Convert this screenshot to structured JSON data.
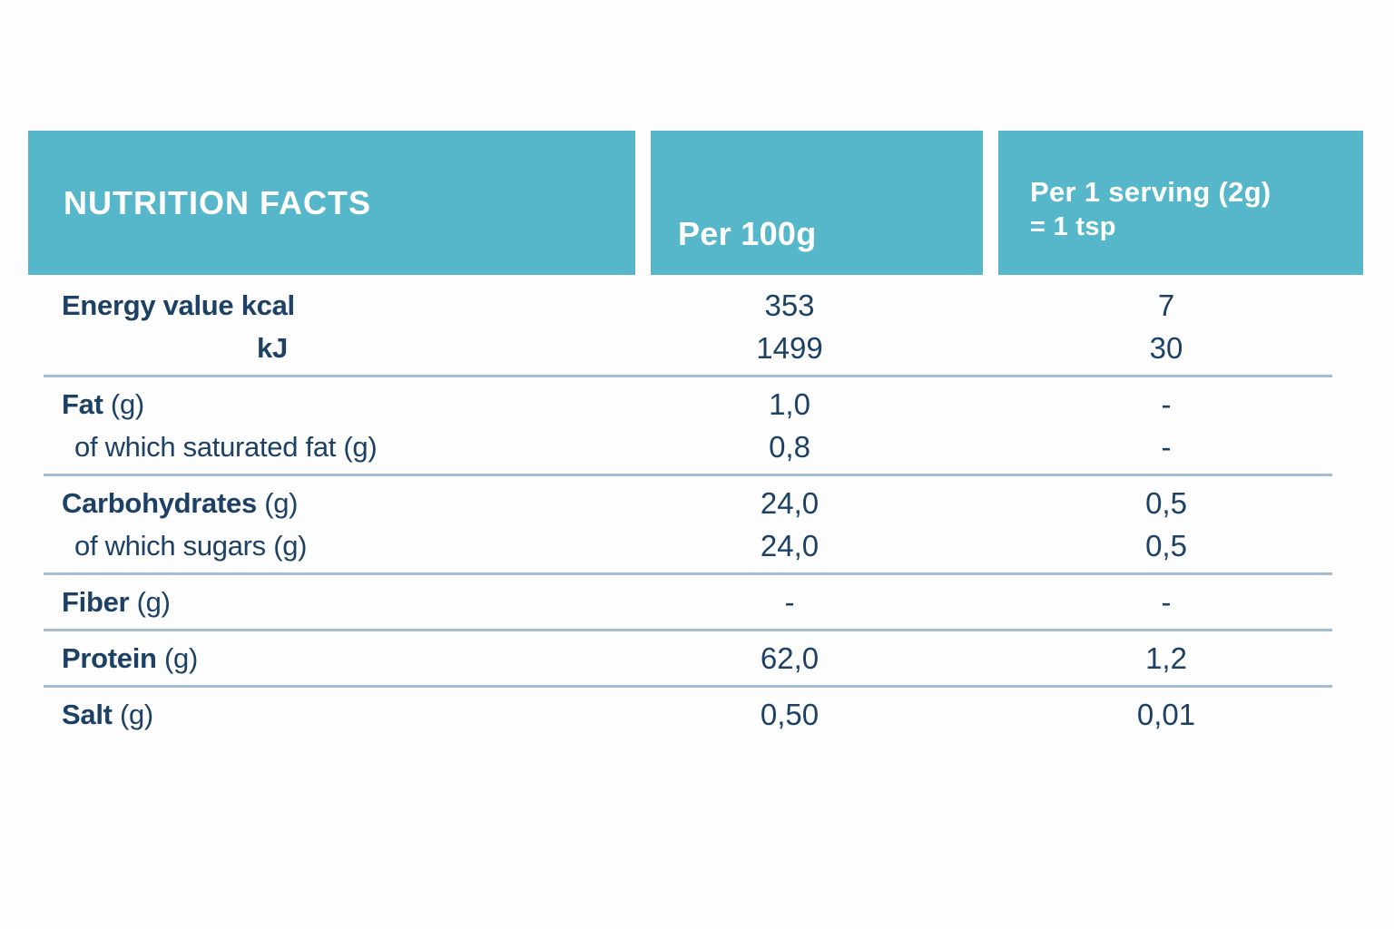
{
  "colors": {
    "teal": "#56b7ca",
    "navy": "#1d4164",
    "divider": "#a3bdd2",
    "background": "#fdfdfd"
  },
  "header": {
    "title": "NUTRITION FACTS",
    "per_100g": "Per 100g",
    "per_serving_line1": "Per 1 serving (2g)",
    "per_serving_line2": "= 1 tsp"
  },
  "rows": [
    {
      "lines": [
        {
          "bold": "Energy value kcal",
          "rest": "",
          "per_100g": "353",
          "per_serving": "7"
        },
        {
          "bold": "kJ",
          "rest": "",
          "per_100g": "1499",
          "per_serving": "30"
        }
      ]
    },
    {
      "lines": [
        {
          "bold": "Fat",
          "rest": " (g)",
          "per_100g": "1,0",
          "per_serving": "-"
        },
        {
          "bold": "",
          "rest": "of which saturated fat (g)",
          "per_100g": "0,8",
          "per_serving": "-"
        }
      ]
    },
    {
      "lines": [
        {
          "bold": "Carbohydrates",
          "rest": " (g)",
          "per_100g": "24,0",
          "per_serving": "0,5"
        },
        {
          "bold": "",
          "rest": "of which sugars (g)",
          "per_100g": "24,0",
          "per_serving": "0,5"
        }
      ]
    },
    {
      "lines": [
        {
          "bold": "Fiber",
          "rest": " (g)",
          "per_100g": "-",
          "per_serving": "-"
        }
      ]
    },
    {
      "lines": [
        {
          "bold": "Protein",
          "rest": " (g)",
          "per_100g": "62,0",
          "per_serving": "1,2"
        }
      ]
    },
    {
      "lines": [
        {
          "bold": "Salt",
          "rest": " (g)",
          "per_100g": "0,50",
          "per_serving": "0,01"
        }
      ]
    }
  ]
}
